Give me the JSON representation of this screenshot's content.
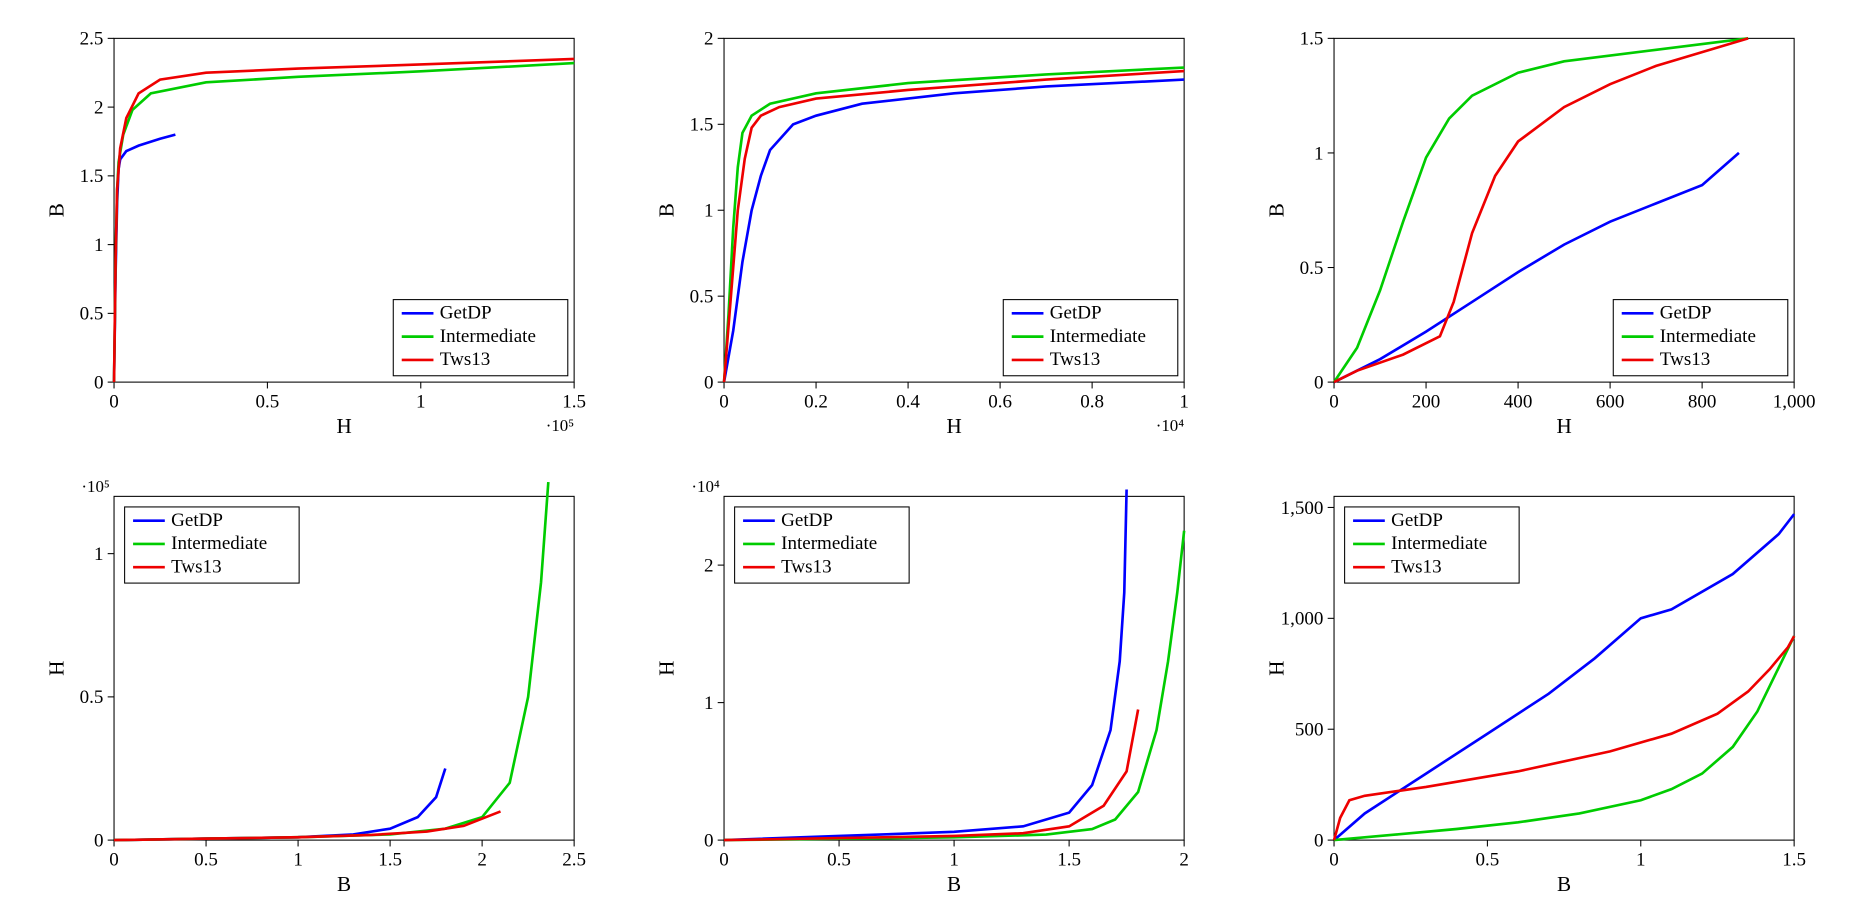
{
  "colors": {
    "getdp": "#0000ff",
    "intermediate": "#00cc00",
    "tws13": "#ee0000",
    "axis": "#000000",
    "background": "#ffffff"
  },
  "line_width": 2.5,
  "font": {
    "tick": 18,
    "axis_label": 20,
    "legend": 18,
    "exponent": 16
  },
  "legend_labels": {
    "getdp": "GetDP",
    "intermediate": "Intermediate",
    "tws13": "Tws13"
  },
  "panels": [
    {
      "id": "p11",
      "xlabel": "H",
      "ylabel": "B",
      "xexp": "·10⁵",
      "xlim": [
        0,
        1.5
      ],
      "ylim": [
        0,
        2.5
      ],
      "xticks": [
        0,
        0.5,
        1,
        1.5
      ],
      "yticks": [
        0,
        0.5,
        1,
        1.5,
        2,
        2.5
      ],
      "legend_pos": "br",
      "series": {
        "getdp": [
          [
            0,
            0
          ],
          [
            0.005,
            0.8
          ],
          [
            0.01,
            1.3
          ],
          [
            0.015,
            1.55
          ],
          [
            0.02,
            1.62
          ],
          [
            0.04,
            1.68
          ],
          [
            0.08,
            1.72
          ],
          [
            0.15,
            1.77
          ],
          [
            0.2,
            1.8
          ]
        ],
        "intermediate": [
          [
            0,
            0
          ],
          [
            0.005,
            0.9
          ],
          [
            0.01,
            1.4
          ],
          [
            0.015,
            1.6
          ],
          [
            0.03,
            1.8
          ],
          [
            0.06,
            1.98
          ],
          [
            0.12,
            2.1
          ],
          [
            0.3,
            2.18
          ],
          [
            0.6,
            2.22
          ],
          [
            1.0,
            2.26
          ],
          [
            1.5,
            2.32
          ]
        ],
        "tws13": [
          [
            0,
            0
          ],
          [
            0.005,
            0.9
          ],
          [
            0.01,
            1.4
          ],
          [
            0.02,
            1.7
          ],
          [
            0.04,
            1.92
          ],
          [
            0.08,
            2.1
          ],
          [
            0.15,
            2.2
          ],
          [
            0.3,
            2.25
          ],
          [
            0.6,
            2.28
          ],
          [
            1.0,
            2.31
          ],
          [
            1.5,
            2.35
          ]
        ]
      }
    },
    {
      "id": "p12",
      "xlabel": "H",
      "ylabel": "B",
      "xexp": "·10⁴",
      "xlim": [
        0,
        1.0
      ],
      "ylim": [
        0,
        2.0
      ],
      "xticks": [
        0,
        0.2,
        0.4,
        0.6,
        0.8,
        1
      ],
      "yticks": [
        0,
        0.5,
        1,
        1.5,
        2
      ],
      "legend_pos": "br",
      "series": {
        "getdp": [
          [
            0,
            0
          ],
          [
            0.02,
            0.3
          ],
          [
            0.04,
            0.7
          ],
          [
            0.06,
            1.0
          ],
          [
            0.08,
            1.2
          ],
          [
            0.1,
            1.35
          ],
          [
            0.15,
            1.5
          ],
          [
            0.2,
            1.55
          ],
          [
            0.3,
            1.62
          ],
          [
            0.5,
            1.68
          ],
          [
            0.7,
            1.72
          ],
          [
            1.0,
            1.76
          ]
        ],
        "intermediate": [
          [
            0,
            0
          ],
          [
            0.01,
            0.4
          ],
          [
            0.02,
            0.9
          ],
          [
            0.03,
            1.25
          ],
          [
            0.04,
            1.45
          ],
          [
            0.06,
            1.55
          ],
          [
            0.1,
            1.62
          ],
          [
            0.2,
            1.68
          ],
          [
            0.4,
            1.74
          ],
          [
            0.7,
            1.79
          ],
          [
            1.0,
            1.83
          ]
        ],
        "tws13": [
          [
            0,
            0
          ],
          [
            0.015,
            0.5
          ],
          [
            0.03,
            1.0
          ],
          [
            0.045,
            1.3
          ],
          [
            0.06,
            1.48
          ],
          [
            0.08,
            1.55
          ],
          [
            0.12,
            1.6
          ],
          [
            0.2,
            1.65
          ],
          [
            0.4,
            1.7
          ],
          [
            0.7,
            1.76
          ],
          [
            1.0,
            1.81
          ]
        ]
      }
    },
    {
      "id": "p13",
      "xlabel": "H",
      "ylabel": "B",
      "xlim": [
        0,
        1000
      ],
      "ylim": [
        0,
        1.5
      ],
      "xticks": [
        0,
        200,
        400,
        600,
        800,
        1000
      ],
      "xtick_labels": [
        "0",
        "200",
        "400",
        "600",
        "800",
        "1,000"
      ],
      "yticks": [
        0,
        0.5,
        1,
        1.5
      ],
      "legend_pos": "br",
      "series": {
        "getdp": [
          [
            0,
            0
          ],
          [
            100,
            0.1
          ],
          [
            200,
            0.22
          ],
          [
            300,
            0.35
          ],
          [
            400,
            0.48
          ],
          [
            500,
            0.6
          ],
          [
            600,
            0.7
          ],
          [
            700,
            0.78
          ],
          [
            800,
            0.86
          ],
          [
            880,
            1.0
          ]
        ],
        "intermediate": [
          [
            0,
            0
          ],
          [
            50,
            0.15
          ],
          [
            100,
            0.4
          ],
          [
            150,
            0.7
          ],
          [
            200,
            0.98
          ],
          [
            250,
            1.15
          ],
          [
            300,
            1.25
          ],
          [
            400,
            1.35
          ],
          [
            500,
            1.4
          ],
          [
            700,
            1.45
          ],
          [
            900,
            1.5
          ]
        ],
        "tws13": [
          [
            0,
            0
          ],
          [
            50,
            0.05
          ],
          [
            150,
            0.12
          ],
          [
            230,
            0.2
          ],
          [
            260,
            0.35
          ],
          [
            300,
            0.65
          ],
          [
            350,
            0.9
          ],
          [
            400,
            1.05
          ],
          [
            500,
            1.2
          ],
          [
            600,
            1.3
          ],
          [
            700,
            1.38
          ],
          [
            800,
            1.44
          ],
          [
            900,
            1.5
          ]
        ]
      }
    },
    {
      "id": "p21",
      "xlabel": "B",
      "ylabel": "H",
      "yexp": "·10⁵",
      "xlim": [
        0,
        2.5
      ],
      "ylim": [
        0,
        1.2
      ],
      "xticks": [
        0,
        0.5,
        1,
        1.5,
        2,
        2.5
      ],
      "yticks": [
        0,
        0.5,
        1
      ],
      "legend_pos": "tl",
      "series": {
        "getdp": [
          [
            0,
            0
          ],
          [
            0.5,
            0.005
          ],
          [
            1.0,
            0.01
          ],
          [
            1.3,
            0.02
          ],
          [
            1.5,
            0.04
          ],
          [
            1.65,
            0.08
          ],
          [
            1.75,
            0.15
          ],
          [
            1.8,
            0.25
          ]
        ],
        "intermediate": [
          [
            0,
            0
          ],
          [
            0.5,
            0.005
          ],
          [
            1.0,
            0.01
          ],
          [
            1.5,
            0.02
          ],
          [
            1.8,
            0.04
          ],
          [
            2.0,
            0.08
          ],
          [
            2.15,
            0.2
          ],
          [
            2.25,
            0.5
          ],
          [
            2.32,
            0.9
          ],
          [
            2.36,
            1.25
          ]
        ],
        "tws13": [
          [
            0,
            0
          ],
          [
            0.5,
            0.005
          ],
          [
            1.0,
            0.01
          ],
          [
            1.4,
            0.018
          ],
          [
            1.7,
            0.03
          ],
          [
            1.9,
            0.05
          ],
          [
            2.1,
            0.1
          ]
        ]
      }
    },
    {
      "id": "p22",
      "xlabel": "B",
      "ylabel": "H",
      "yexp": "·10⁴",
      "xlim": [
        0,
        2.0
      ],
      "ylim": [
        0,
        2.5
      ],
      "xticks": [
        0,
        0.5,
        1,
        1.5,
        2
      ],
      "yticks": [
        0,
        1,
        2
      ],
      "legend_pos": "tl",
      "series": {
        "getdp": [
          [
            0,
            0
          ],
          [
            0.5,
            0.03
          ],
          [
            1.0,
            0.06
          ],
          [
            1.3,
            0.1
          ],
          [
            1.5,
            0.2
          ],
          [
            1.6,
            0.4
          ],
          [
            1.68,
            0.8
          ],
          [
            1.72,
            1.3
          ],
          [
            1.74,
            1.8
          ],
          [
            1.75,
            2.55
          ]
        ],
        "intermediate": [
          [
            0,
            0
          ],
          [
            0.5,
            0.01
          ],
          [
            1.0,
            0.02
          ],
          [
            1.4,
            0.04
          ],
          [
            1.6,
            0.08
          ],
          [
            1.7,
            0.15
          ],
          [
            1.8,
            0.35
          ],
          [
            1.88,
            0.8
          ],
          [
            1.93,
            1.3
          ],
          [
            1.97,
            1.8
          ],
          [
            2.0,
            2.25
          ]
        ],
        "tws13": [
          [
            0,
            0
          ],
          [
            0.5,
            0.015
          ],
          [
            1.0,
            0.03
          ],
          [
            1.3,
            0.05
          ],
          [
            1.5,
            0.1
          ],
          [
            1.65,
            0.25
          ],
          [
            1.75,
            0.5
          ],
          [
            1.8,
            0.95
          ]
        ]
      }
    },
    {
      "id": "p23",
      "xlabel": "B",
      "ylabel": "H",
      "xlim": [
        0,
        1.5
      ],
      "ylim": [
        0,
        1550
      ],
      "xticks": [
        0,
        0.5,
        1,
        1.5
      ],
      "yticks": [
        0,
        500,
        1000,
        1500
      ],
      "ytick_labels": [
        "0",
        "500",
        "1,000",
        "1,500"
      ],
      "legend_pos": "tl",
      "series": {
        "getdp": [
          [
            0,
            0
          ],
          [
            0.1,
            120
          ],
          [
            0.3,
            300
          ],
          [
            0.5,
            480
          ],
          [
            0.7,
            660
          ],
          [
            0.85,
            820
          ],
          [
            1.0,
            1000
          ],
          [
            1.1,
            1040
          ],
          [
            1.3,
            1200
          ],
          [
            1.45,
            1380
          ],
          [
            1.5,
            1470
          ]
        ],
        "intermediate": [
          [
            0,
            0
          ],
          [
            0.2,
            25
          ],
          [
            0.4,
            50
          ],
          [
            0.6,
            80
          ],
          [
            0.8,
            120
          ],
          [
            1.0,
            180
          ],
          [
            1.1,
            230
          ],
          [
            1.2,
            300
          ],
          [
            1.3,
            420
          ],
          [
            1.38,
            580
          ],
          [
            1.44,
            750
          ],
          [
            1.5,
            920
          ]
        ],
        "tws13": [
          [
            0,
            0
          ],
          [
            0.02,
            100
          ],
          [
            0.05,
            180
          ],
          [
            0.1,
            200
          ],
          [
            0.3,
            240
          ],
          [
            0.6,
            310
          ],
          [
            0.9,
            400
          ],
          [
            1.1,
            480
          ],
          [
            1.25,
            570
          ],
          [
            1.35,
            670
          ],
          [
            1.42,
            770
          ],
          [
            1.48,
            870
          ],
          [
            1.5,
            920
          ]
        ]
      }
    }
  ]
}
